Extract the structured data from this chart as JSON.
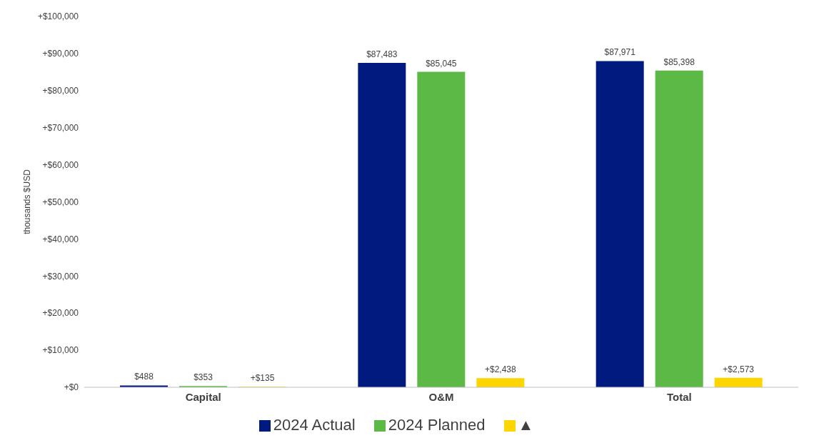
{
  "chart_data": {
    "type": "bar",
    "ylabel": "thousands $USD",
    "categories": [
      "Capital",
      "O&M",
      "Total"
    ],
    "series": [
      {
        "name": "2024 Actual",
        "color": "#001a80",
        "values": [
          488,
          87483,
          87971
        ],
        "value_labels": [
          "$488",
          "$87,483",
          "$87,971"
        ]
      },
      {
        "name": "2024 Planned",
        "color": "#5cb946",
        "values": [
          353,
          85045,
          85398
        ],
        "value_labels": [
          "$353",
          "$85,045",
          "$85,398"
        ]
      },
      {
        "name": "▲",
        "color": "#ffd500",
        "values": [
          135,
          2438,
          2573
        ],
        "value_labels": [
          "+$135",
          "+$2,438",
          "+$2,573"
        ]
      }
    ],
    "ylim": [
      0,
      100000
    ],
    "yticks": [
      {
        "value": 0,
        "label": "+$0"
      },
      {
        "value": 10000,
        "label": "+$10,000"
      },
      {
        "value": 20000,
        "label": "+$20,000"
      },
      {
        "value": 30000,
        "label": "+$30,000"
      },
      {
        "value": 40000,
        "label": "+$40,000"
      },
      {
        "value": 50000,
        "label": "+$50,000"
      },
      {
        "value": 60000,
        "label": "+$60,000"
      },
      {
        "value": 70000,
        "label": "+$70,000"
      },
      {
        "value": 80000,
        "label": "+$80,000"
      },
      {
        "value": 90000,
        "label": "+$90,000"
      },
      {
        "value": 100000,
        "label": "+$100,000"
      }
    ],
    "grid": false,
    "legend": "bottom"
  }
}
